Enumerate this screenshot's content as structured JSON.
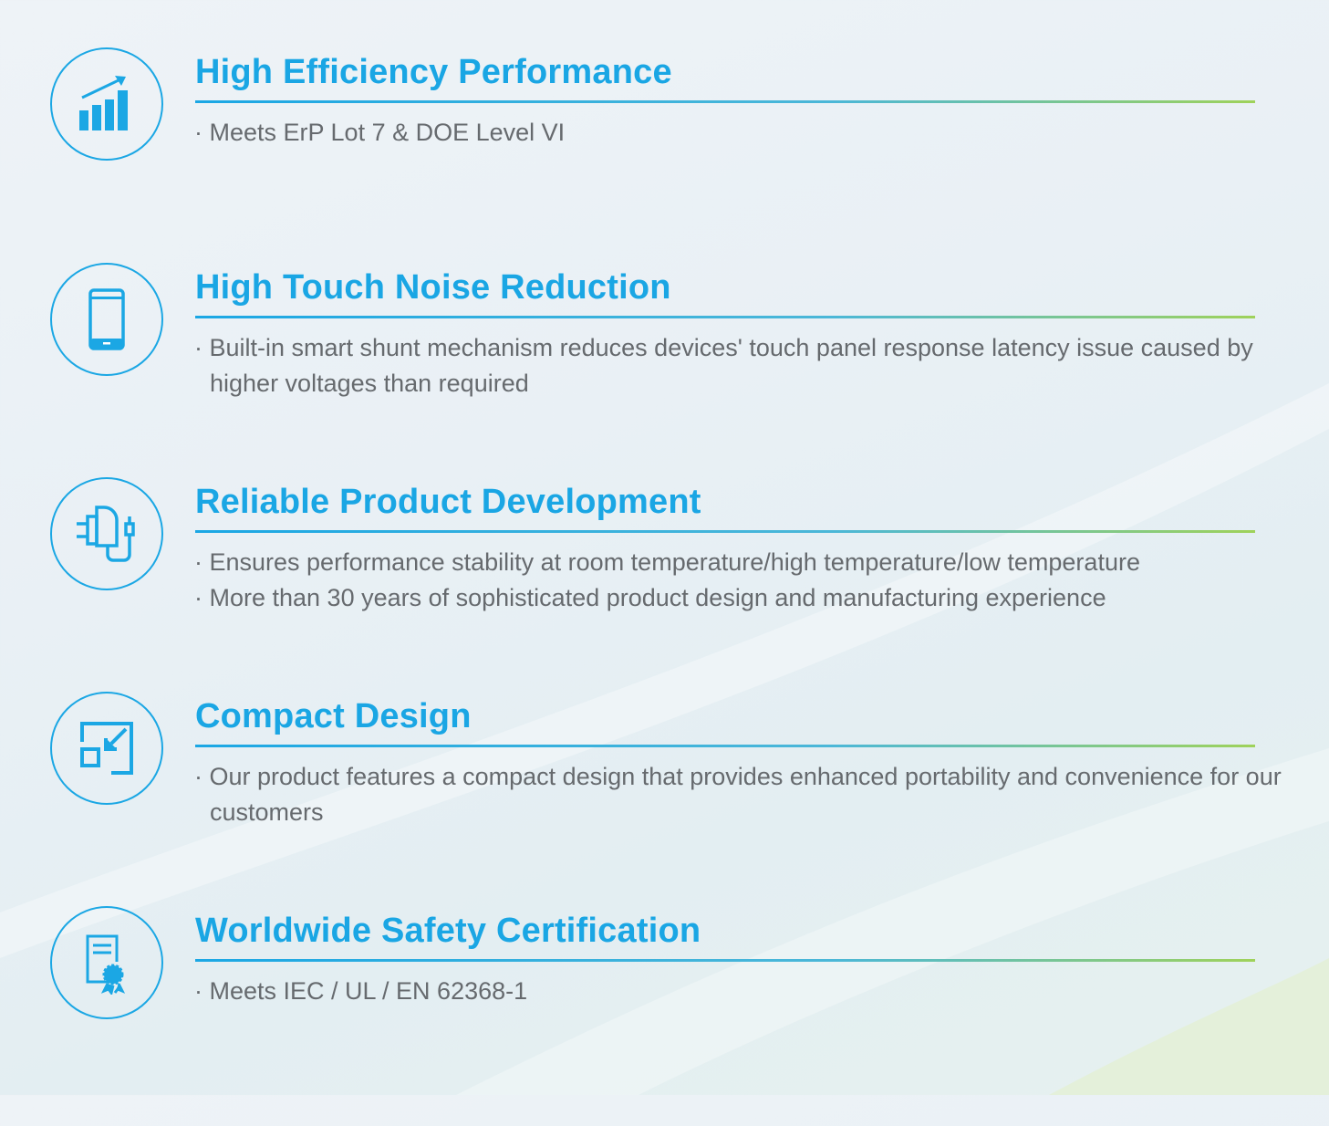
{
  "colors": {
    "accent": "#1aa6e4",
    "divider_end": "#9fd25a",
    "body_text": "#666a6e"
  },
  "features": [
    {
      "title": "High Efficiency Performance",
      "icon": "bar-chart-growth-icon",
      "bullets": [
        "· Meets ErP Lot 7 & DOE Level VI"
      ]
    },
    {
      "title": "High Touch Noise Reduction",
      "icon": "smartphone-icon",
      "bullets": [
        "· Built-in smart shunt mechanism reduces devices' touch panel response latency issue caused by higher voltages than required"
      ]
    },
    {
      "title": "Reliable Product Development",
      "icon": "charger-adapter-icon",
      "bullets": [
        "· Ensures performance stability at room temperature/high temperature/low temperature",
        "· More than 30 years of sophisticated product  design and manufacturing experience"
      ]
    },
    {
      "title": "Compact Design",
      "icon": "compact-resize-icon",
      "bullets": [
        "· Our product features a compact design that provides enhanced portability and convenience for our customers"
      ]
    },
    {
      "title": "Worldwide Safety Certification",
      "icon": "certificate-icon",
      "bullets": [
        "· Meets IEC / UL / EN 62368-1"
      ]
    }
  ]
}
